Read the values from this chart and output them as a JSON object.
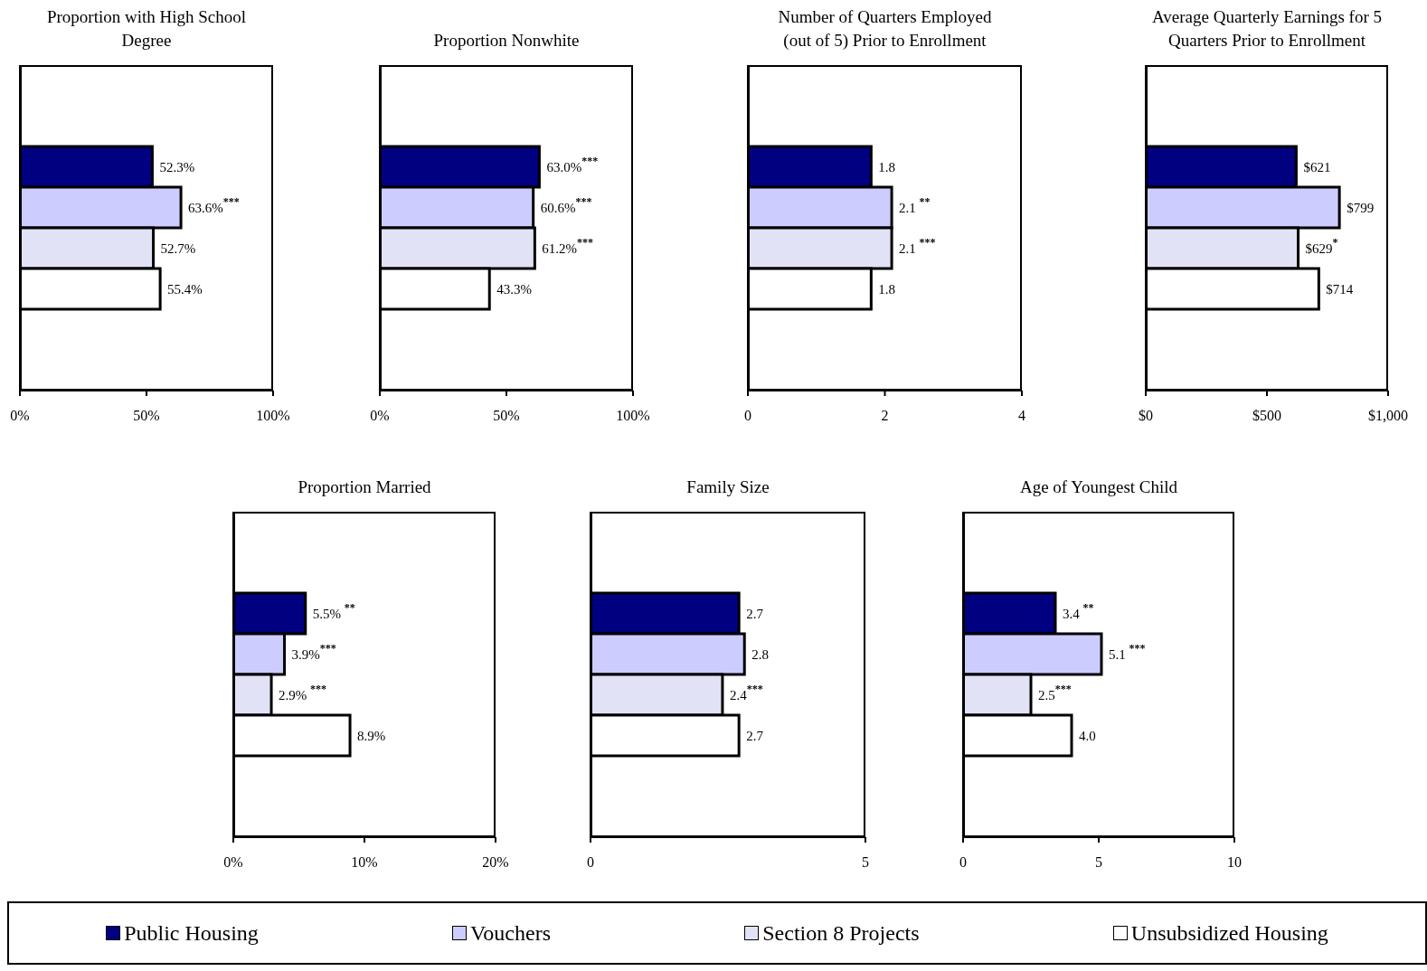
{
  "chart_data": [
    {
      "type": "bar",
      "orientation": "horizontal",
      "title": "Proportion with High School Degree",
      "categories": [
        null
      ],
      "xlim": [
        0,
        100
      ],
      "xticks": [
        {
          "value": 0,
          "label": "0%"
        },
        {
          "value": 50,
          "label": "50%"
        },
        {
          "value": 100,
          "label": "100%"
        }
      ],
      "legend": "bottom",
      "series": [
        {
          "name": "Public Housing",
          "color": "#000080",
          "values": [
            52.3
          ],
          "value_labels": [
            "52.3%"
          ]
        },
        {
          "name": "Vouchers",
          "color": "#ccccff",
          "values": [
            63.6
          ],
          "value_labels": [
            "63.6%$^{***}$"
          ]
        },
        {
          "name": "Section 8 Projects",
          "color": "#e2e2f6",
          "values": [
            52.7
          ],
          "value_labels": [
            "52.7%"
          ]
        },
        {
          "name": "Unsubsidized Housing",
          "color": "#ffffff",
          "values": [
            55.4
          ],
          "value_labels": [
            "55.4%"
          ]
        }
      ]
    },
    {
      "type": "bar",
      "orientation": "horizontal",
      "title": "Proportion Nonwhite",
      "categories": [
        null
      ],
      "xlim": [
        0,
        100
      ],
      "xticks": [
        {
          "value": 0,
          "label": "0%"
        },
        {
          "value": 50,
          "label": "50%"
        },
        {
          "value": 100,
          "label": "100%"
        }
      ],
      "series": [
        {
          "color": "#000080",
          "values": [
            63.0
          ],
          "value_labels": [
            "63.0%$^{***}$"
          ]
        },
        {
          "color": "#ccccff",
          "values": [
            60.6
          ],
          "value_labels": [
            "60.6%$^{***}$"
          ]
        },
        {
          "color": "#e2e2f6",
          "values": [
            61.2
          ],
          "value_labels": [
            "61.2%$^{***}$"
          ]
        },
        {
          "color": "#ffffff",
          "values": [
            43.3
          ],
          "value_labels": [
            "43.3%"
          ]
        }
      ]
    },
    {
      "type": "bar",
      "orientation": "horizontal",
      "title": "Number of Quarters Employed (out of 5) Prior to Enrollment",
      "categories": [
        null
      ],
      "xlim": [
        0,
        4
      ],
      "xticks": [
        0,
        2,
        4
      ],
      "series": [
        {
          "color": "#000080",
          "values": [
            1.8
          ],
          "value_labels": [
            "1.8"
          ]
        },
        {
          "color": "#ccccff",
          "values": [
            2.1
          ],
          "value_labels": [
            "2.1 $^{**}$"
          ]
        },
        {
          "color": "#e2e2f6",
          "values": [
            2.1
          ],
          "value_labels": [
            "2.1 $^{***}$"
          ]
        },
        {
          "color": "#ffffff",
          "values": [
            1.8
          ],
          "value_labels": [
            "1.8"
          ]
        }
      ]
    },
    {
      "type": "bar",
      "orientation": "horizontal",
      "title": "Average Quarterly Earnings for 5 Quarters Prior to Enrollment",
      "categories": [
        null
      ],
      "xlim": [
        0,
        1000
      ],
      "xticks": [
        {
          "value": 0,
          "label": "$0"
        },
        {
          "value": 500,
          "label": "$500"
        },
        {
          "value": 1000,
          "label": "$1,000"
        }
      ],
      "series": [
        {
          "color": "#000080",
          "values": [
            621
          ],
          "value_labels": [
            "$621"
          ]
        },
        {
          "color": "#ccccff",
          "values": [
            799
          ],
          "value_labels": [
            "$799"
          ]
        },
        {
          "color": "#e2e2f6",
          "values": [
            629
          ],
          "value_labels": [
            "$629$^{*}$"
          ]
        },
        {
          "color": "#ffffff",
          "values": [
            714
          ],
          "value_labels": [
            "$714"
          ]
        }
      ]
    },
    {
      "type": "bar",
      "orientation": "horizontal",
      "title": "Proportion Married",
      "categories": [
        null
      ],
      "xlim": [
        0,
        20
      ],
      "xticks": [
        {
          "value": 0,
          "label": "0%"
        },
        {
          "value": 10,
          "label": "10%"
        },
        {
          "value": 20,
          "label": "20%"
        }
      ],
      "series": [
        {
          "color": "#000080",
          "values": [
            5.5
          ],
          "value_labels": [
            "5.5% $^{**}$"
          ]
        },
        {
          "color": "#ccccff",
          "values": [
            3.9
          ],
          "value_labels": [
            "3.9%$^{***}$"
          ]
        },
        {
          "color": "#e2e2f6",
          "values": [
            2.9
          ],
          "value_labels": [
            "2.9% $^{***}$"
          ]
        },
        {
          "color": "#ffffff",
          "values": [
            8.9
          ],
          "value_labels": [
            "8.9%"
          ]
        }
      ]
    },
    {
      "type": "bar",
      "orientation": "horizontal",
      "title": "Family Size",
      "categories": [
        null
      ],
      "xlim": [
        0,
        5
      ],
      "xticks": [
        0,
        5
      ],
      "series": [
        {
          "color": "#000080",
          "values": [
            2.7
          ],
          "value_labels": [
            "2.7"
          ]
        },
        {
          "color": "#ccccff",
          "values": [
            2.8
          ],
          "value_labels": [
            "2.8"
          ]
        },
        {
          "color": "#e2e2f6",
          "values": [
            2.4
          ],
          "value_labels": [
            "2.4$^{***}$"
          ]
        },
        {
          "color": "#ffffff",
          "values": [
            2.7
          ],
          "value_labels": [
            "2.7"
          ]
        }
      ]
    },
    {
      "type": "bar",
      "orientation": "horizontal",
      "title": "Age of Youngest Child",
      "categories": [
        null
      ],
      "xlim": [
        0,
        10
      ],
      "xticks": [
        0,
        5,
        10
      ],
      "series": [
        {
          "color": "#000080",
          "values": [
            3.4
          ],
          "value_labels": [
            "3.4 $^{**}$"
          ]
        },
        {
          "color": "#ccccff",
          "values": [
            5.1
          ],
          "value_labels": [
            "5.1 $^{***}$"
          ]
        },
        {
          "color": "#e2e2f6",
          "values": [
            2.5
          ],
          "value_labels": [
            "2.5$^{***}$"
          ]
        },
        {
          "color": "#ffffff",
          "values": [
            4.0
          ],
          "value_labels": [
            "4.0"
          ]
        }
      ]
    }
  ]
}
